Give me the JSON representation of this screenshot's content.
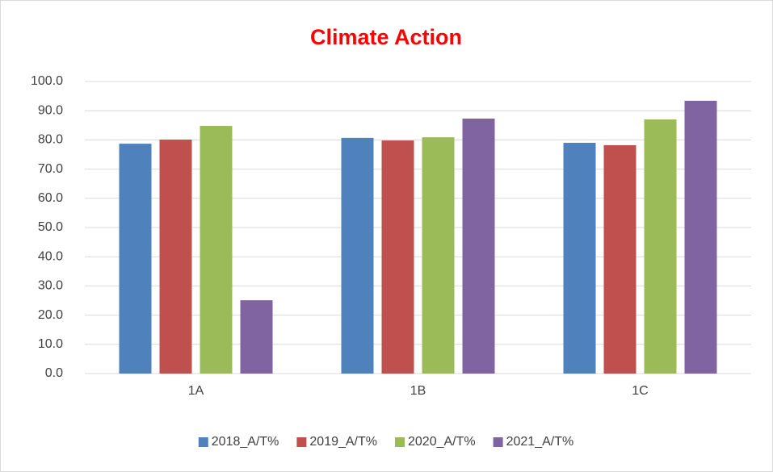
{
  "chart_data": {
    "type": "bar",
    "title": "Climate Action",
    "categories": [
      "1A",
      "1B",
      "1C"
    ],
    "series": [
      {
        "name": "2018_A/T%",
        "color": "#4f81bd",
        "values": [
          78.7,
          80.7,
          79.0
        ]
      },
      {
        "name": "2019_A/T%",
        "color": "#c0504d",
        "values": [
          80.1,
          79.8,
          78.2
        ]
      },
      {
        "name": "2020_A/T%",
        "color": "#9bbb59",
        "values": [
          84.8,
          80.9,
          87.0
        ]
      },
      {
        "name": "2021_A/T%",
        "color": "#8064a2",
        "values": [
          25.1,
          87.3,
          93.4
        ]
      }
    ],
    "ylim": [
      0,
      100
    ],
    "yticks": [
      {
        "value": 0,
        "label": "0.0"
      },
      {
        "value": 10,
        "label": "10.0"
      },
      {
        "value": 20,
        "label": "20.0"
      },
      {
        "value": 30,
        "label": "30.0"
      },
      {
        "value": 40,
        "label": "40.0"
      },
      {
        "value": 50,
        "label": "50.0"
      },
      {
        "value": 60,
        "label": "60.0"
      },
      {
        "value": 70,
        "label": "70.0"
      },
      {
        "value": 80,
        "label": "80.0"
      },
      {
        "value": 90,
        "label": "90.0"
      },
      {
        "value": 100,
        "label": "100.0"
      }
    ],
    "grid": true,
    "legend": "bottom",
    "title_color": "#ff0000"
  }
}
